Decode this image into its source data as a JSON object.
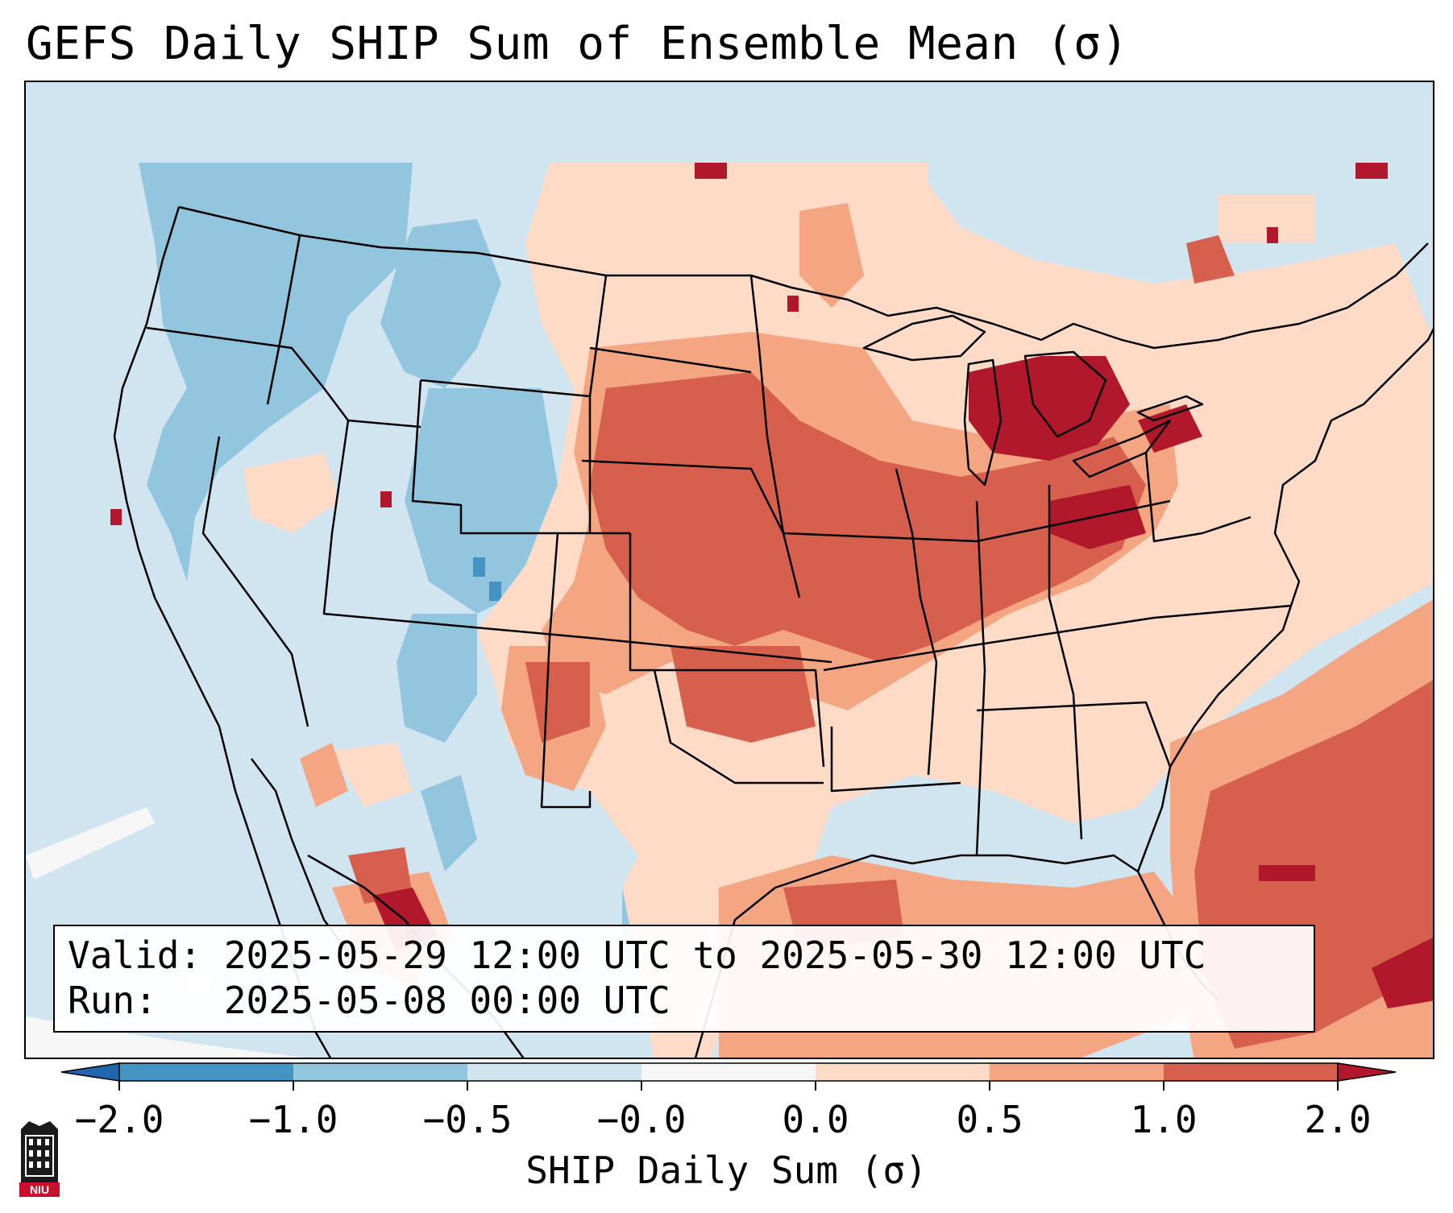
{
  "title": "GEFS Daily SHIP Sum of Ensemble Mean (σ)",
  "info": {
    "valid_line": "Valid: 2025-05-29 12:00 UTC to 2025-05-30 12:00 UTC",
    "run_line": "Run:   2025-05-08 00:00 UTC"
  },
  "colorbar": {
    "label": "SHIP Daily Sum (σ)",
    "bins": [
      {
        "lo": -2.0,
        "hi": -1.0,
        "color": "#4393c3"
      },
      {
        "lo": -1.0,
        "hi": -0.5,
        "color": "#92c5de"
      },
      {
        "lo": -0.5,
        "hi": -0.0,
        "color": "#d1e5f0"
      },
      {
        "lo": -0.0,
        "hi": 0.0,
        "color": "#f7f7f7"
      },
      {
        "lo": 0.0,
        "hi": 0.5,
        "color": "#fddbc7"
      },
      {
        "lo": 0.5,
        "hi": 1.0,
        "color": "#f4a582"
      },
      {
        "lo": 1.0,
        "hi": 2.0,
        "color": "#d6604d"
      }
    ],
    "under_color": "#2166ac",
    "over_color": "#b2182b",
    "tick_labels": [
      "−2.0",
      "−1.0",
      "−0.5",
      "−0.0",
      "0.0",
      "0.5",
      "1.0",
      "2.0"
    ]
  },
  "logo": {
    "text": "NIU"
  }
}
